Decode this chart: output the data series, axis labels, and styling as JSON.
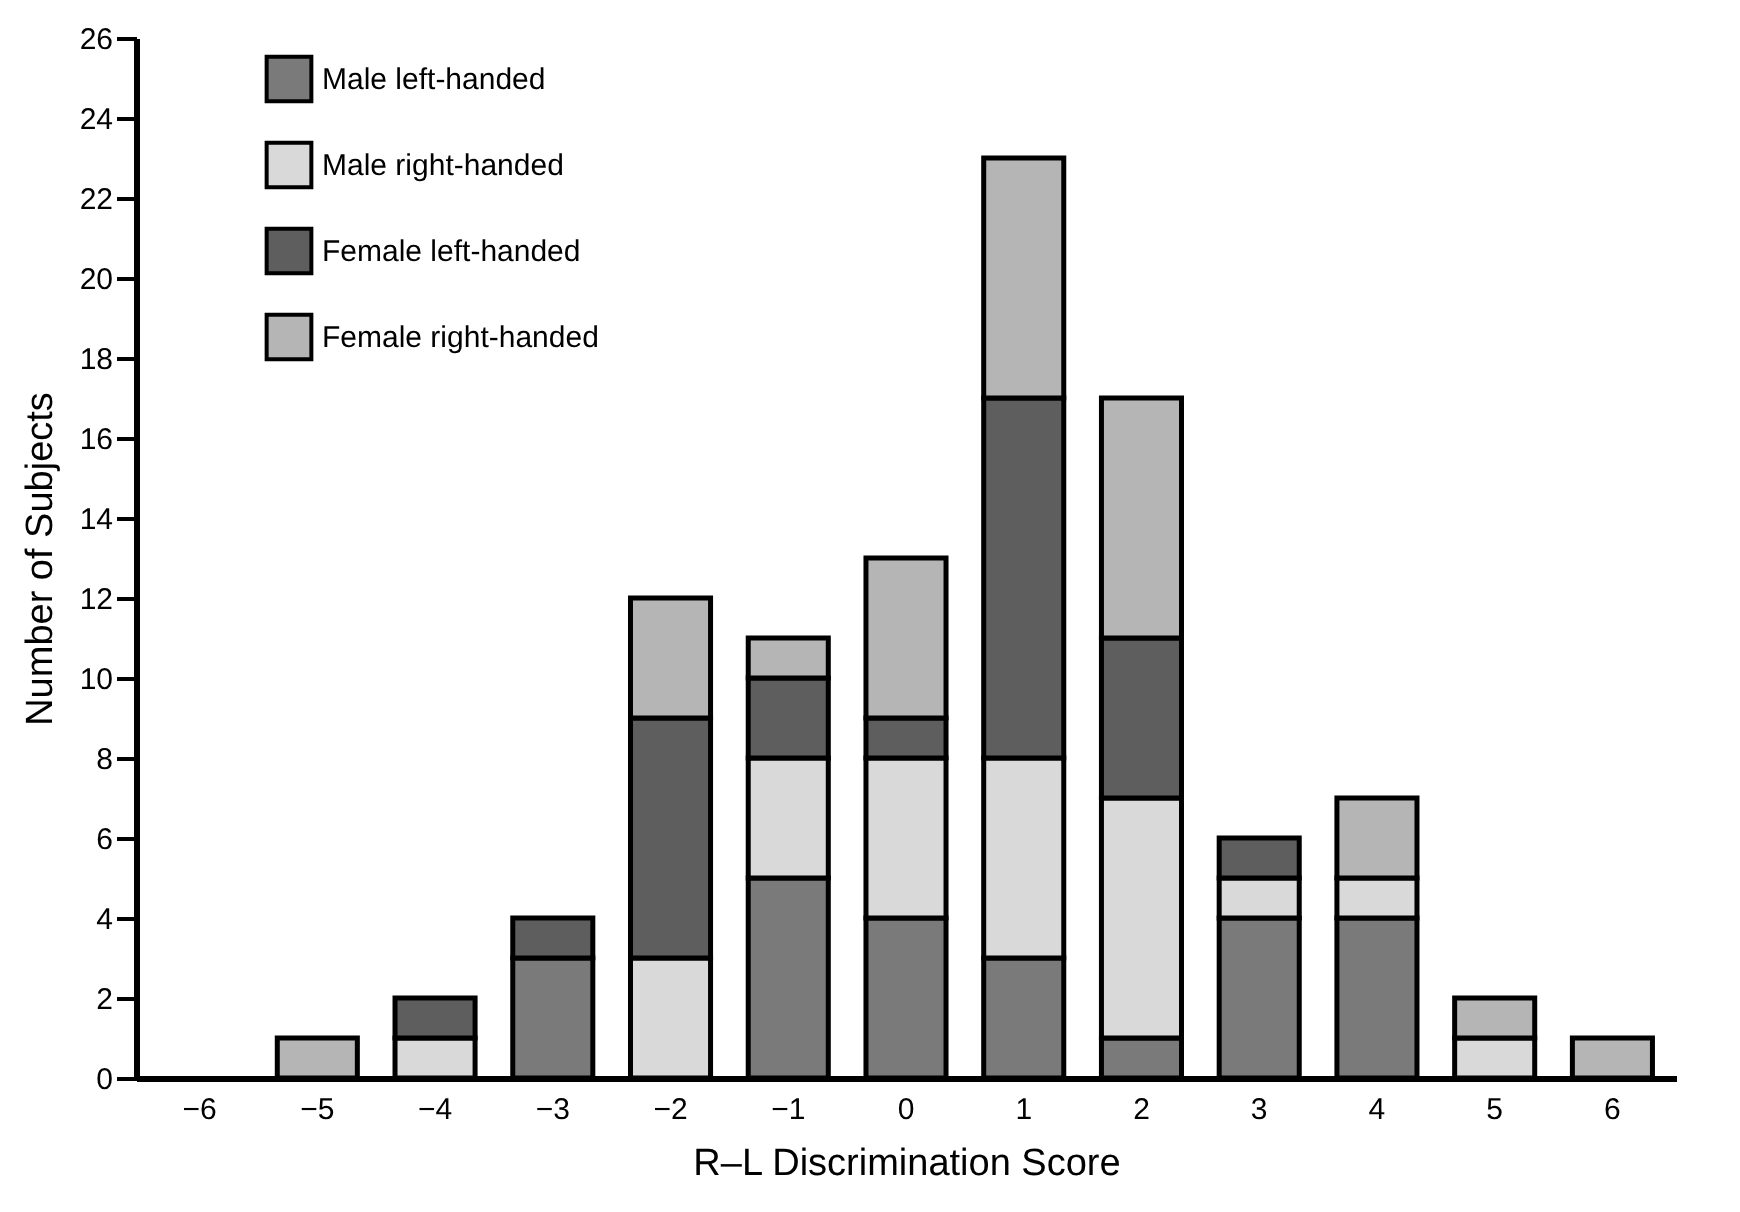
{
  "chart_data": {
    "type": "bar",
    "stacked": true,
    "xlabel": "R–L Discrimination Score",
    "ylabel": "Number of Subjects",
    "categories": [
      "−6",
      "−5",
      "−4",
      "−3",
      "−2",
      "−1",
      "0",
      "1",
      "2",
      "3",
      "4",
      "5",
      "6"
    ],
    "series": [
      {
        "name": "Male left-handed",
        "color": "#7a7a7a",
        "values": [
          0,
          0,
          0,
          3,
          0,
          5,
          4,
          3,
          1,
          4,
          4,
          0,
          0
        ]
      },
      {
        "name": "Male right-handed",
        "color": "#d9d9d9",
        "values": [
          0,
          0,
          1,
          0,
          3,
          3,
          4,
          5,
          6,
          1,
          1,
          1,
          0
        ]
      },
      {
        "name": "Female left-handed",
        "color": "#5e5e5e",
        "values": [
          0,
          0,
          1,
          1,
          6,
          2,
          1,
          9,
          4,
          1,
          0,
          0,
          0
        ]
      },
      {
        "name": "Female right-handed",
        "color": "#b5b5b5",
        "values": [
          0,
          1,
          0,
          0,
          3,
          1,
          4,
          6,
          6,
          0,
          2,
          1,
          1
        ]
      }
    ],
    "ylim": [
      0,
      26
    ],
    "yticks": [
      0,
      2,
      4,
      6,
      8,
      10,
      12,
      14,
      16,
      18,
      20,
      22,
      24,
      26
    ],
    "grid": false,
    "legend": "top left"
  }
}
